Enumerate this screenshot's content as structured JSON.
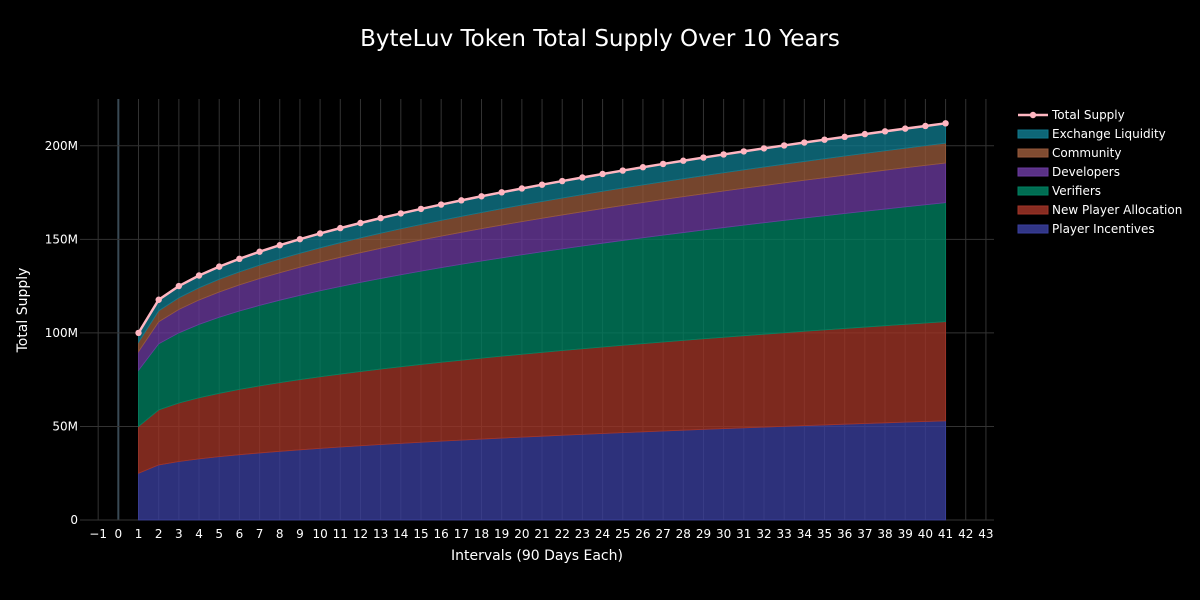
{
  "chart_data": {
    "type": "area",
    "title": "ByteLuv Token Total Supply Over 10 Years",
    "xlabel": "Intervals (90 Days Each)",
    "ylabel": "Total Supply",
    "xlim": [
      -1.9,
      43.4
    ],
    "ylim": [
      0,
      225000000
    ],
    "x_ticks": [
      -1,
      0,
      1,
      2,
      3,
      4,
      5,
      6,
      7,
      8,
      9,
      10,
      11,
      12,
      13,
      14,
      15,
      16,
      17,
      18,
      19,
      20,
      21,
      22,
      23,
      24,
      25,
      26,
      27,
      28,
      29,
      30,
      31,
      32,
      33,
      34,
      35,
      36,
      37,
      38,
      39,
      40,
      41,
      42,
      43
    ],
    "y_ticks": [
      0,
      50000000,
      100000000,
      150000000,
      200000000
    ],
    "y_tick_labels": [
      "0",
      "50M",
      "100M",
      "150M",
      "200M"
    ],
    "grid": true,
    "legend_position": "top-right",
    "x": [
      1,
      41
    ],
    "stacked": true,
    "series": [
      {
        "name": "Player Incentives",
        "color": "#3a3f9e",
        "start": 25000000,
        "end": 53000000
      },
      {
        "name": "New Player Allocation",
        "color": "#a03427",
        "start": 25000000,
        "end": 53000000
      },
      {
        "name": "Verifiers",
        "color": "#008060",
        "start": 30000000,
        "end": 63600000
      },
      {
        "name": "Developers",
        "color": "#6a3a9e",
        "start": 10000000,
        "end": 21200000
      },
      {
        "name": "Community",
        "color": "#96593a",
        "start": 5000000,
        "end": 10600000
      },
      {
        "name": "Exchange Liquidity",
        "color": "#10788c",
        "start": 5000000,
        "end": 10600000
      }
    ],
    "total_line": {
      "name": "Total Supply",
      "color": "#ffb6c1",
      "start": 100000000,
      "end": 212000000
    },
    "legend_order": [
      "Total Supply",
      "Exchange Liquidity",
      "Community",
      "Developers",
      "Verifiers",
      "New Player Allocation",
      "Player Incentives"
    ]
  }
}
